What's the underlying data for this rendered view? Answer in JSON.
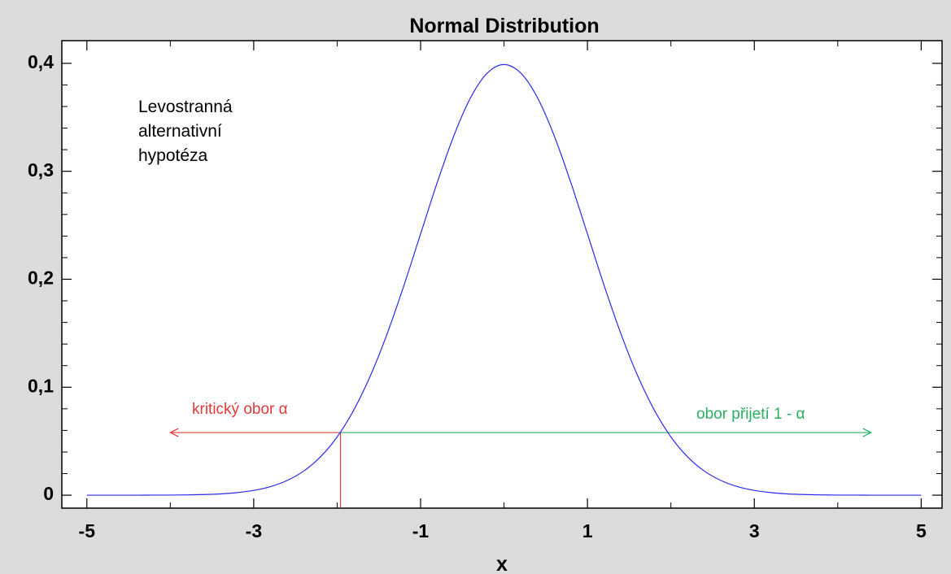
{
  "chart_data": {
    "type": "line",
    "title": "Normal Distribution",
    "xlabel": "x",
    "x": [
      -5,
      -4.8,
      -4.6,
      -4.4,
      -4.2,
      -4,
      -3.8,
      -3.6,
      -3.4,
      -3.2,
      -3,
      -2.8,
      -2.6,
      -2.4,
      -2.2,
      -2,
      -1.8,
      -1.6,
      -1.4,
      -1.2,
      -1,
      -0.8,
      -0.6,
      -0.4,
      -0.2,
      0,
      0.2,
      0.4,
      0.6,
      0.8,
      1,
      1.2,
      1.4,
      1.6,
      1.8,
      2,
      2.2,
      2.4,
      2.6,
      2.8,
      3,
      3.2,
      3.4,
      3.6,
      3.8,
      4,
      4.2,
      4.4,
      4.6,
      4.8,
      5
    ],
    "series": [
      {
        "color": "#2a2af0",
        "values": [
          0,
          0,
          0,
          0,
          0.0001,
          0.0001,
          0.0003,
          0.0006,
          0.0012,
          0.0024,
          0.0044,
          0.0079,
          0.0136,
          0.0224,
          0.0355,
          0.054,
          0.079,
          0.1109,
          0.1497,
          0.1942,
          0.242,
          0.2897,
          0.3332,
          0.3683,
          0.391,
          0.3989,
          0.391,
          0.3683,
          0.3332,
          0.2897,
          0.242,
          0.1942,
          0.1497,
          0.1109,
          0.079,
          0.054,
          0.0355,
          0.0224,
          0.0136,
          0.0079,
          0.0044,
          0.0024,
          0.0012,
          0.0006,
          0.0003,
          0.0001,
          0.0001,
          0,
          0,
          0,
          0
        ]
      }
    ],
    "xlim": [
      -5.3,
      5.25
    ],
    "ylim": [
      -0.012,
      0.421
    ],
    "xticks": [
      -5,
      -3,
      -1,
      1,
      3,
      5
    ],
    "xminor": [
      -4,
      -2,
      0,
      2,
      4
    ],
    "yticks": [
      0,
      {
        "value": 0.1,
        "label": "0,1"
      },
      {
        "value": 0.2,
        "label": "0,2"
      },
      {
        "value": 0.3,
        "label": "0,3"
      },
      {
        "value": 0.4,
        "label": "0,4"
      }
    ],
    "yminor": [
      0.02,
      0.04,
      0.06,
      0.08,
      0.12,
      0.14,
      0.16,
      0.18,
      0.22,
      0.24,
      0.26,
      0.28,
      0.32,
      0.34,
      0.36,
      0.38
    ],
    "critical_value": -1.96,
    "arrow_y": 0.058,
    "arrow_left": -4,
    "arrow_right": 4.4,
    "critical_color": "#e03a3a",
    "accept_color": "#28b060",
    "annotations": {
      "hypothesis": [
        "Levostranná",
        "alternativní",
        "hypotéza"
      ],
      "critical": "kritický obor α",
      "accept": "obor přijetí 1 - α"
    }
  }
}
